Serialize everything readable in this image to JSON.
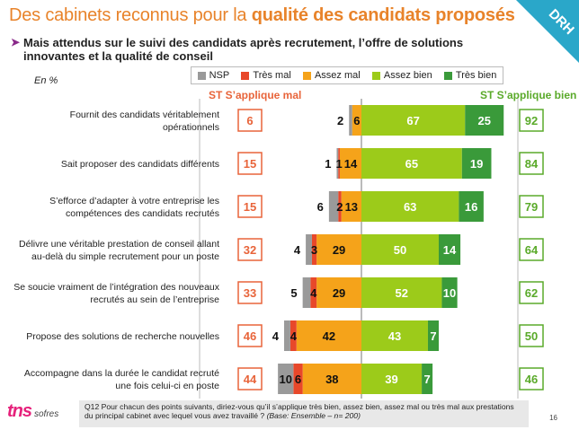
{
  "header": {
    "title_normal": "Des cabinets reconnus pour la ",
    "title_bold": "qualité des candidats proposés",
    "corner_label": "DRH",
    "subtitle_line1": "Mais attendus sur le suivi des candidats après recrutement, l’offre de solutions",
    "subtitle_line2": "innovantes et la qualité de conseil",
    "unit": "En %"
  },
  "colors": {
    "nsp": "#9a9a9a",
    "tres_mal": "#e8482a",
    "assez_mal": "#f5a31a",
    "assez_bien": "#9ccb1a",
    "tres_bien": "#3a9a3a",
    "st_left_box": "#e8643a",
    "st_right_box": "#5aaa2a"
  },
  "chart_data": {
    "type": "bar",
    "orientation": "horizontal-diverging",
    "legend": [
      "NSP",
      "Très mal",
      "Assez mal",
      "Assez bien",
      "Très bien"
    ],
    "st_left_label": "ST S’applique mal",
    "st_right_label": "ST S’applique bien",
    "categories": [
      "Fournit des candidats véritablement opérationnels",
      "Sait proposer des candidats différents",
      "S’efforce d’adapter à votre entreprise les compétences des candidats recrutés",
      "Délivre une véritable prestation de conseil allant au-delà du simple recrutement pour un poste",
      "Se soucie vraiment de l’intégration des nouveaux recrutés au sein de l’entreprise",
      "Propose des solutions de recherche nouvelles",
      "Accompagne dans la durée le candidat recruté une fois celui-ci en poste"
    ],
    "labels": [
      [
        "Fournit des candidats véritablement",
        "opérationnels"
      ],
      [
        "Sait proposer des candidats différents"
      ],
      [
        "S’efforce d’adapter à votre entreprise les",
        "compétences des candidats recrutés"
      ],
      [
        "Délivre une véritable prestation de conseil allant",
        "au-delà du simple recrutement pour un poste"
      ],
      [
        "Se soucie vraiment de l’intégration des nouveaux",
        "recrutés au sein de l’entreprise"
      ],
      [
        "Propose des solutions de recherche nouvelles"
      ],
      [
        "Accompagne dans la durée le candidat recruté",
        "une fois celui-ci en poste"
      ]
    ],
    "series": [
      {
        "name": "NSP",
        "values": [
          2,
          1,
          6,
          4,
          5,
          4,
          10
        ]
      },
      {
        "name": "Très mal",
        "values": [
          0,
          1,
          2,
          3,
          4,
          4,
          6
        ]
      },
      {
        "name": "Assez mal",
        "values": [
          6,
          14,
          13,
          29,
          29,
          42,
          38
        ]
      },
      {
        "name": "Assez bien",
        "values": [
          67,
          65,
          63,
          50,
          52,
          43,
          39
        ]
      },
      {
        "name": "Très bien",
        "values": [
          25,
          19,
          16,
          14,
          10,
          7,
          7
        ]
      }
    ],
    "st_mal": [
      6,
      15,
      15,
      32,
      33,
      46,
      44
    ],
    "st_bien": [
      92,
      84,
      79,
      64,
      62,
      50,
      46
    ]
  },
  "footer": {
    "logo_main": "tns",
    "logo_sub": "sofres",
    "note": "Q12 Pour chacun des points suivants, diriez-vous qu’il s’applique très bien, assez bien, assez mal ou très mal aux prestations du principal cabinet avec lequel vous avez travaillé ?",
    "base": "(Base: Ensemble – n= 200)",
    "page": "16"
  }
}
